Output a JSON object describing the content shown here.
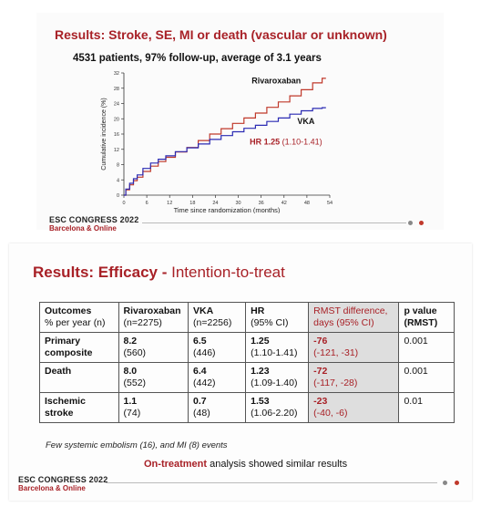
{
  "slide1": {
    "title": "Results: Stroke, SE, MI or death (vascular or unknown)",
    "subtitle": "4531 patients, 97% follow-up, average of 3.1 years",
    "congress_line1": "ESC CONGRESS 2022",
    "congress_line2": "Barcelona & Online"
  },
  "chart_data": {
    "type": "line",
    "ylabel": "Cumulative incidence (%)",
    "xlabel": "Time since randomization (months)",
    "xlim": [
      0,
      54
    ],
    "ylim": [
      0,
      32
    ],
    "xticks": [
      0,
      6,
      12,
      18,
      24,
      30,
      36,
      42,
      48,
      54
    ],
    "yticks": [
      0,
      4,
      8,
      12,
      16,
      20,
      24,
      28,
      32
    ],
    "annotation": {
      "hr_label": "HR 1.25",
      "hr_ci": "(1.10-1.41)"
    },
    "series": [
      {
        "name": "Rivaroxaban",
        "color": "#c0392b",
        "x": [
          0,
          1,
          2,
          3,
          4,
          6,
          8,
          10,
          12,
          15,
          18,
          21,
          24,
          27,
          30,
          33,
          36,
          39,
          42,
          45,
          48,
          51,
          53
        ],
        "y": [
          0,
          1.4,
          2.7,
          3.8,
          4.7,
          6.2,
          7.6,
          8.8,
          9.9,
          11.3,
          12.5,
          14.3,
          16.0,
          17.4,
          18.8,
          20.2,
          21.5,
          23.0,
          24.4,
          26.0,
          27.6,
          29.4,
          30.6
        ]
      },
      {
        "name": "VKA",
        "color": "#2b2bb3",
        "x": [
          0,
          1,
          2,
          3,
          4,
          6,
          8,
          10,
          12,
          15,
          18,
          21,
          24,
          27,
          30,
          33,
          36,
          39,
          42,
          45,
          48,
          51,
          53
        ],
        "y": [
          0,
          1.6,
          3.1,
          4.3,
          5.3,
          7.0,
          8.4,
          9.4,
          10.3,
          11.4,
          12.4,
          13.4,
          14.6,
          15.6,
          16.6,
          17.5,
          18.3,
          19.3,
          20.2,
          21.2,
          22.1,
          22.7,
          22.9
        ]
      }
    ]
  },
  "slide2": {
    "title_bold": "Results: Efficacy",
    "title_sep": " - ",
    "title_normal": "Intention-to-treat",
    "table": {
      "headers": [
        [
          "Outcomes",
          "% per year (n)"
        ],
        [
          "Rivaroxaban",
          "(n=2275)"
        ],
        [
          "VKA",
          "(n=2256)"
        ],
        [
          "HR",
          "(95% CI)"
        ],
        [
          "RMST difference,",
          "days (95% CI)"
        ],
        [
          "p value",
          "(RMST)"
        ]
      ],
      "rows": [
        {
          "outcome": [
            "Primary",
            "composite"
          ],
          "riva": [
            "8.2",
            "(560)"
          ],
          "vka": [
            "6.5",
            "(446)"
          ],
          "hr": [
            "1.25",
            "(1.10-1.41)"
          ],
          "rmst": [
            "-76",
            "(-121, -31)"
          ],
          "p": "0.001"
        },
        {
          "outcome": [
            "Death",
            ""
          ],
          "riva": [
            "8.0",
            "(552)"
          ],
          "vka": [
            "6.4",
            "(442)"
          ],
          "hr": [
            "1.23",
            "(1.09-1.40)"
          ],
          "rmst": [
            "-72",
            "(-117, -28)"
          ],
          "p": "0.001"
        },
        {
          "outcome": [
            "Ischemic",
            "stroke"
          ],
          "riva": [
            "1.1",
            "(74)"
          ],
          "vka": [
            "0.7",
            "(48)"
          ],
          "hr": [
            "1.53",
            "(1.06-2.20)"
          ],
          "rmst": [
            "-23",
            "(-40, -6)"
          ],
          "p": "0.01"
        }
      ]
    },
    "footnote": "Few systemic embolism (16), and MI (8) events",
    "ontreatment_highlight": "On-treatment",
    "ontreatment_rest": " analysis showed similar results",
    "congress_line1": "ESC CONGRESS 2022",
    "congress_line2": "Barcelona & Online"
  }
}
